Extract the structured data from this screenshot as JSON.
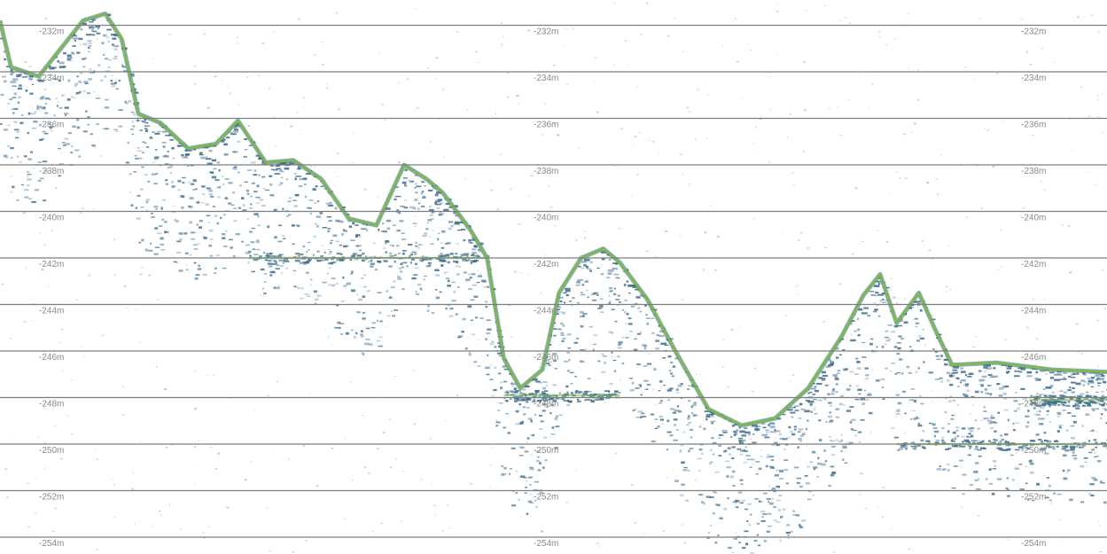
{
  "chart_data": {
    "type": "echogram",
    "title": "",
    "xlabel": "",
    "ylabel": "",
    "depth_unit": "m",
    "ylim": [
      -254.8,
      -230.8
    ],
    "depth_lines": [
      -232,
      -234,
      -236,
      -238,
      -240,
      -242,
      -244,
      -246,
      -248,
      -250,
      -252,
      -254
    ],
    "depth_labels": [
      "-232m",
      "-234m",
      "-236m",
      "-238m",
      "-240m",
      "-242m",
      "-244m",
      "-246m",
      "-248m",
      "-250m",
      "-252m",
      "-254m"
    ],
    "label_columns": 3,
    "seabed_profile": {
      "x_range": [
        0,
        1
      ],
      "depth": [
        [
          0.0,
          -231.8
        ],
        [
          0.01,
          -233.8
        ],
        [
          0.035,
          -234.2
        ],
        [
          0.055,
          -233.0
        ],
        [
          0.075,
          -231.8
        ],
        [
          0.095,
          -231.5
        ],
        [
          0.11,
          -232.6
        ],
        [
          0.125,
          -235.8
        ],
        [
          0.145,
          -236.2
        ],
        [
          0.17,
          -237.3
        ],
        [
          0.195,
          -237.1
        ],
        [
          0.215,
          -236.1
        ],
        [
          0.24,
          -237.9
        ],
        [
          0.265,
          -237.8
        ],
        [
          0.29,
          -238.6
        ],
        [
          0.315,
          -240.3
        ],
        [
          0.34,
          -240.6
        ],
        [
          0.365,
          -238.0
        ],
        [
          0.385,
          -238.6
        ],
        [
          0.4,
          -239.2
        ],
        [
          0.425,
          -240.8
        ],
        [
          0.44,
          -242.0
        ],
        [
          0.455,
          -246.3
        ],
        [
          0.47,
          -247.6
        ],
        [
          0.49,
          -246.8
        ],
        [
          0.505,
          -243.5
        ],
        [
          0.525,
          -242.0
        ],
        [
          0.545,
          -241.6
        ],
        [
          0.56,
          -242.2
        ],
        [
          0.585,
          -243.8
        ],
        [
          0.61,
          -246.0
        ],
        [
          0.64,
          -248.5
        ],
        [
          0.67,
          -249.2
        ],
        [
          0.7,
          -248.9
        ],
        [
          0.73,
          -247.6
        ],
        [
          0.76,
          -245.4
        ],
        [
          0.78,
          -243.6
        ],
        [
          0.795,
          -242.7
        ],
        [
          0.81,
          -244.8
        ],
        [
          0.83,
          -243.5
        ],
        [
          0.845,
          -245.1
        ],
        [
          0.86,
          -246.6
        ],
        [
          0.9,
          -246.5
        ],
        [
          0.95,
          -246.8
        ],
        [
          1.0,
          -246.9
        ]
      ]
    },
    "school_layers": [
      {
        "x": [
          0.225,
          0.44
        ],
        "depth": -242.0
      },
      {
        "x": [
          0.455,
          0.56
        ],
        "depth": -247.9
      },
      {
        "x": [
          0.81,
          1.0
        ],
        "depth": -250.0
      },
      {
        "x": [
          0.93,
          1.0
        ],
        "depth": -248.1
      }
    ],
    "colors": {
      "background": "#ffffff",
      "gridline": "#7e7e7e",
      "label": "#8a8a8a",
      "echo_strong": "#7cb84a",
      "echo_mid": "#3b6c8c",
      "echo_weak": "#8fa9c4"
    }
  }
}
